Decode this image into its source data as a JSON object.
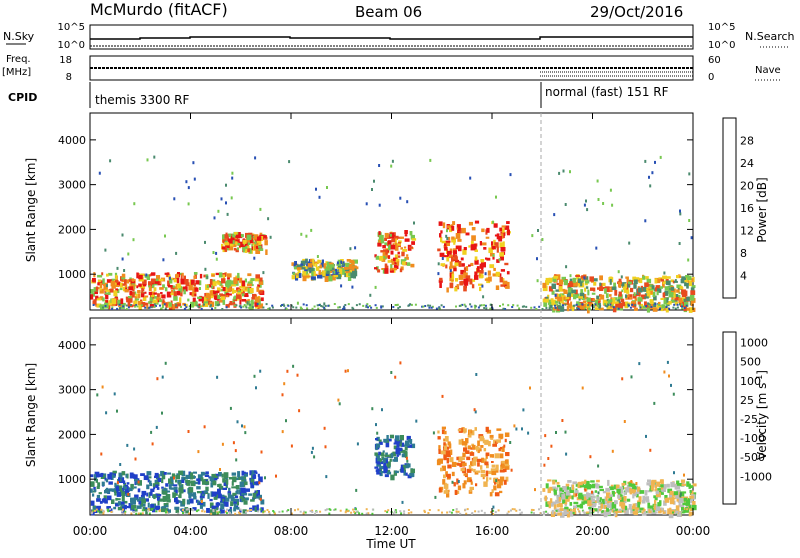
{
  "header": {
    "station": "McMurdo (fitACF)",
    "beam": "Beam 06",
    "date": "29/Oct/2016"
  },
  "top_panel": {
    "left_top_label": "N.Sky",
    "left_top_ticks": [
      "10^5",
      "10^0"
    ],
    "right_top_label": "N.Search",
    "right_top_ticks": [
      "10^5",
      "10^0"
    ],
    "left_mid_label_1": "Freq.",
    "left_mid_label_2": "[MHz]",
    "left_mid_ticks": [
      "18",
      "8"
    ],
    "right_mid_label": "Nave",
    "right_mid_ticks": [
      "60",
      "0"
    ],
    "cpid_label": "CPID",
    "cpid_segments": [
      {
        "text": "themis 3300 RF",
        "start_hour": 0
      },
      {
        "text": "normal (fast) 151 RF",
        "start_hour": 18
      }
    ]
  },
  "chart_data": [
    {
      "type": "heatmap",
      "name": "power",
      "ylabel": "Slant Range [km]",
      "ylim": [
        200,
        4600
      ],
      "yticks": [
        1000,
        2000,
        3000,
        4000
      ],
      "xlim": [
        0,
        24
      ],
      "colorbar": {
        "label": "Power [dB]",
        "ticks": [
          "4",
          "8",
          "12",
          "16",
          "20",
          "24",
          "28"
        ],
        "colors": [
          "#1e1ef0",
          "#2850b4",
          "#4a8a6e",
          "#78c850",
          "#f0d020",
          "#f08c1e",
          "#e84a1e",
          "#e81414"
        ]
      },
      "blobs": [
        {
          "t0": 0.0,
          "t1": 6.8,
          "r0": 320,
          "r1": 1050,
          "level": 5
        },
        {
          "t0": 5.2,
          "t1": 7.0,
          "r0": 1550,
          "r1": 1950,
          "level": 5
        },
        {
          "t0": 8.0,
          "t1": 10.5,
          "r0": 950,
          "r1": 1350,
          "level": 3
        },
        {
          "t0": 11.3,
          "t1": 12.8,
          "r0": 1100,
          "r1": 2000,
          "level": 5
        },
        {
          "t0": 13.8,
          "t1": 16.6,
          "r0": 700,
          "r1": 2200,
          "level": 6
        },
        {
          "t0": 18.0,
          "t1": 24.0,
          "r0": 250,
          "r1": 1000,
          "level": 4
        }
      ]
    },
    {
      "type": "heatmap",
      "name": "velocity",
      "ylabel": "Slant Range [km]",
      "xlabel": "Time UT",
      "ylim": [
        200,
        4600
      ],
      "yticks": [
        1000,
        2000,
        3000,
        4000
      ],
      "xlim": [
        0,
        24
      ],
      "xticks": [
        "00:00",
        "04:00",
        "08:00",
        "12:00",
        "16:00",
        "20:00",
        "00:00"
      ],
      "colorbar": {
        "label": "Velocity [m s",
        "label_sup": "-1",
        "label_end": "]",
        "ticks": [
          "1000",
          "500",
          "100",
          "25",
          "-25",
          "-100",
          "-500",
          "-1000"
        ],
        "colors": [
          "#2040c8",
          "#2e7a92",
          "#3c8c5a",
          "#50c83c",
          "#bebebe",
          "#f0b450",
          "#f08c1e",
          "#f05a14",
          "#e61414"
        ]
      },
      "blobs": [
        {
          "t0": 0.0,
          "t1": 6.8,
          "r0": 320,
          "r1": 1200,
          "level": "toward"
        },
        {
          "t0": 11.3,
          "t1": 12.8,
          "r0": 1100,
          "r1": 2000,
          "level": "toward"
        },
        {
          "t0": 13.8,
          "t1": 16.6,
          "r0": 700,
          "r1": 2200,
          "level": "away"
        },
        {
          "t0": 18.0,
          "t1": 24.0,
          "r0": 250,
          "r1": 1000,
          "level": "mixed"
        }
      ]
    }
  ]
}
